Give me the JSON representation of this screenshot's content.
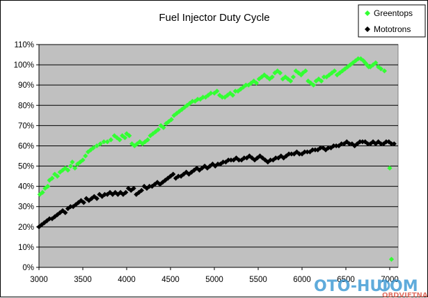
{
  "chart_data": {
    "type": "scatter",
    "title": "Fuel Injector Duty Cycle",
    "xlabel": "",
    "ylabel": "",
    "xlim": [
      3000,
      7200
    ],
    "ylim": [
      0,
      110
    ],
    "x_ticks": [
      3000,
      3500,
      4000,
      4500,
      5000,
      5500,
      6000,
      6500,
      7000
    ],
    "y_ticks": [
      0,
      10,
      20,
      30,
      40,
      50,
      60,
      70,
      80,
      90,
      100,
      110
    ],
    "y_tick_format": "%",
    "grid": "horizontal",
    "plot_background": "#c0c0c0",
    "legend_position": "top-right",
    "series": [
      {
        "name": "Greentops",
        "color": "#33ff33",
        "marker": "diamond",
        "points": [
          [
            3010,
            36
          ],
          [
            3040,
            37
          ],
          [
            3070,
            39
          ],
          [
            3100,
            40
          ],
          [
            3120,
            43
          ],
          [
            3150,
            44
          ],
          [
            3180,
            46
          ],
          [
            3210,
            45
          ],
          [
            3240,
            47
          ],
          [
            3270,
            48
          ],
          [
            3300,
            49
          ],
          [
            3330,
            48
          ],
          [
            3360,
            50
          ],
          [
            3380,
            52
          ],
          [
            3410,
            49
          ],
          [
            3440,
            51
          ],
          [
            3470,
            52
          ],
          [
            3500,
            53
          ],
          [
            3530,
            55
          ],
          [
            3560,
            57
          ],
          [
            3590,
            58
          ],
          [
            3620,
            59
          ],
          [
            3660,
            60
          ],
          [
            3700,
            61
          ],
          [
            3740,
            62
          ],
          [
            3780,
            62
          ],
          [
            3820,
            63
          ],
          [
            3860,
            65
          ],
          [
            3890,
            64
          ],
          [
            3920,
            63
          ],
          [
            3950,
            65
          ],
          [
            3980,
            64
          ],
          [
            4000,
            66
          ],
          [
            4030,
            65
          ],
          [
            4060,
            61
          ],
          [
            4090,
            60
          ],
          [
            4120,
            61
          ],
          [
            4150,
            62
          ],
          [
            4180,
            61
          ],
          [
            4210,
            62
          ],
          [
            4240,
            63
          ],
          [
            4270,
            65
          ],
          [
            4300,
            66
          ],
          [
            4330,
            67
          ],
          [
            4360,
            68
          ],
          [
            4390,
            70
          ],
          [
            4420,
            69
          ],
          [
            4450,
            71
          ],
          [
            4480,
            72
          ],
          [
            4510,
            73
          ],
          [
            4540,
            75
          ],
          [
            4570,
            76
          ],
          [
            4600,
            77
          ],
          [
            4630,
            78
          ],
          [
            4660,
            79
          ],
          [
            4690,
            80
          ],
          [
            4720,
            81
          ],
          [
            4750,
            82
          ],
          [
            4780,
            82
          ],
          [
            4810,
            83
          ],
          [
            4840,
            83
          ],
          [
            4870,
            84
          ],
          [
            4900,
            84
          ],
          [
            4930,
            85
          ],
          [
            4960,
            86
          ],
          [
            5000,
            86
          ],
          [
            5030,
            87
          ],
          [
            5060,
            85
          ],
          [
            5090,
            84
          ],
          [
            5120,
            84
          ],
          [
            5150,
            85
          ],
          [
            5180,
            86
          ],
          [
            5210,
            85
          ],
          [
            5240,
            87
          ],
          [
            5270,
            87
          ],
          [
            5300,
            88
          ],
          [
            5330,
            89
          ],
          [
            5360,
            90
          ],
          [
            5390,
            90
          ],
          [
            5420,
            91
          ],
          [
            5450,
            92
          ],
          [
            5480,
            91
          ],
          [
            5510,
            93
          ],
          [
            5540,
            94
          ],
          [
            5570,
            95
          ],
          [
            5600,
            94
          ],
          [
            5630,
            93
          ],
          [
            5660,
            94
          ],
          [
            5690,
            96
          ],
          [
            5720,
            97
          ],
          [
            5750,
            96
          ],
          [
            5780,
            93
          ],
          [
            5810,
            94
          ],
          [
            5840,
            93
          ],
          [
            5870,
            92
          ],
          [
            5900,
            94
          ],
          [
            5930,
            97
          ],
          [
            5960,
            96
          ],
          [
            5990,
            95
          ],
          [
            6010,
            96
          ],
          [
            6040,
            97
          ],
          [
            6070,
            92
          ],
          [
            6100,
            91
          ],
          [
            6130,
            90
          ],
          [
            6160,
            92
          ],
          [
            6190,
            93
          ],
          [
            6220,
            92
          ],
          [
            6250,
            94
          ],
          [
            6280,
            94
          ],
          [
            6310,
            95
          ],
          [
            6340,
            96
          ],
          [
            6370,
            97
          ],
          [
            6400,
            95
          ],
          [
            6430,
            96
          ],
          [
            6460,
            97
          ],
          [
            6490,
            98
          ],
          [
            6520,
            99
          ],
          [
            6550,
            100
          ],
          [
            6580,
            101
          ],
          [
            6610,
            102
          ],
          [
            6640,
            103
          ],
          [
            6670,
            103
          ],
          [
            6700,
            102
          ],
          [
            6720,
            101
          ],
          [
            6740,
            100
          ],
          [
            6760,
            99
          ],
          [
            6780,
            99
          ],
          [
            6810,
            100
          ],
          [
            6840,
            101
          ],
          [
            6870,
            99
          ],
          [
            6900,
            98
          ],
          [
            6940,
            97
          ],
          [
            7000,
            49
          ],
          [
            7020,
            4
          ]
        ]
      },
      {
        "name": "Mototrons",
        "color": "#000000",
        "marker": "diamond",
        "points": [
          [
            3000,
            20
          ],
          [
            3030,
            21
          ],
          [
            3060,
            22
          ],
          [
            3090,
            23
          ],
          [
            3120,
            24
          ],
          [
            3150,
            24
          ],
          [
            3180,
            25
          ],
          [
            3210,
            26
          ],
          [
            3240,
            27
          ],
          [
            3270,
            28
          ],
          [
            3300,
            27
          ],
          [
            3330,
            29
          ],
          [
            3360,
            30
          ],
          [
            3390,
            30
          ],
          [
            3420,
            31
          ],
          [
            3450,
            32
          ],
          [
            3480,
            33
          ],
          [
            3510,
            32
          ],
          [
            3540,
            34
          ],
          [
            3570,
            33
          ],
          [
            3600,
            34
          ],
          [
            3630,
            35
          ],
          [
            3660,
            34
          ],
          [
            3690,
            36
          ],
          [
            3720,
            35
          ],
          [
            3750,
            36
          ],
          [
            3780,
            36
          ],
          [
            3810,
            37
          ],
          [
            3840,
            36
          ],
          [
            3870,
            37
          ],
          [
            3900,
            36
          ],
          [
            3930,
            37
          ],
          [
            3960,
            36
          ],
          [
            3990,
            37
          ],
          [
            4020,
            39
          ],
          [
            4050,
            38
          ],
          [
            4080,
            39
          ],
          [
            4110,
            36
          ],
          [
            4140,
            37
          ],
          [
            4170,
            38
          ],
          [
            4200,
            40
          ],
          [
            4230,
            39
          ],
          [
            4260,
            40
          ],
          [
            4290,
            40
          ],
          [
            4320,
            41
          ],
          [
            4350,
            42
          ],
          [
            4380,
            41
          ],
          [
            4410,
            42
          ],
          [
            4440,
            43
          ],
          [
            4470,
            44
          ],
          [
            4500,
            45
          ],
          [
            4530,
            46
          ],
          [
            4560,
            44
          ],
          [
            4590,
            45
          ],
          [
            4620,
            45
          ],
          [
            4650,
            46
          ],
          [
            4680,
            47
          ],
          [
            4710,
            46
          ],
          [
            4740,
            47
          ],
          [
            4770,
            48
          ],
          [
            4800,
            49
          ],
          [
            4830,
            48
          ],
          [
            4860,
            49
          ],
          [
            4890,
            50
          ],
          [
            4920,
            49
          ],
          [
            4950,
            50
          ],
          [
            4980,
            51
          ],
          [
            5010,
            50
          ],
          [
            5040,
            51
          ],
          [
            5070,
            51
          ],
          [
            5100,
            52
          ],
          [
            5130,
            52
          ],
          [
            5160,
            53
          ],
          [
            5190,
            53
          ],
          [
            5220,
            53
          ],
          [
            5250,
            54
          ],
          [
            5280,
            53
          ],
          [
            5310,
            53
          ],
          [
            5340,
            54
          ],
          [
            5370,
            54
          ],
          [
            5400,
            55
          ],
          [
            5430,
            54
          ],
          [
            5460,
            53
          ],
          [
            5490,
            54
          ],
          [
            5520,
            55
          ],
          [
            5550,
            54
          ],
          [
            5580,
            53
          ],
          [
            5610,
            52
          ],
          [
            5640,
            53
          ],
          [
            5670,
            53
          ],
          [
            5700,
            54
          ],
          [
            5730,
            54
          ],
          [
            5760,
            55
          ],
          [
            5790,
            54
          ],
          [
            5820,
            55
          ],
          [
            5850,
            56
          ],
          [
            5880,
            56
          ],
          [
            5910,
            56
          ],
          [
            5940,
            57
          ],
          [
            5970,
            56
          ],
          [
            6000,
            56
          ],
          [
            6030,
            57
          ],
          [
            6060,
            57
          ],
          [
            6090,
            57
          ],
          [
            6120,
            58
          ],
          [
            6150,
            58
          ],
          [
            6180,
            58
          ],
          [
            6210,
            59
          ],
          [
            6240,
            59
          ],
          [
            6270,
            58
          ],
          [
            6300,
            59
          ],
          [
            6330,
            59
          ],
          [
            6360,
            60
          ],
          [
            6390,
            60
          ],
          [
            6420,
            60
          ],
          [
            6450,
            61
          ],
          [
            6480,
            61
          ],
          [
            6510,
            62
          ],
          [
            6540,
            61
          ],
          [
            6570,
            61
          ],
          [
            6600,
            60
          ],
          [
            6630,
            61
          ],
          [
            6660,
            62
          ],
          [
            6690,
            62
          ],
          [
            6720,
            62
          ],
          [
            6750,
            61
          ],
          [
            6780,
            61
          ],
          [
            6810,
            62
          ],
          [
            6840,
            61
          ],
          [
            6870,
            62
          ],
          [
            6900,
            61
          ],
          [
            6930,
            61
          ],
          [
            6960,
            62
          ],
          [
            6990,
            62
          ],
          [
            7020,
            61
          ],
          [
            7050,
            61
          ]
        ]
      }
    ]
  },
  "watermark": {
    "text_left": "OTO-HUI",
    "text_right": "OM",
    "subtext": "OBDVIETNAM"
  }
}
